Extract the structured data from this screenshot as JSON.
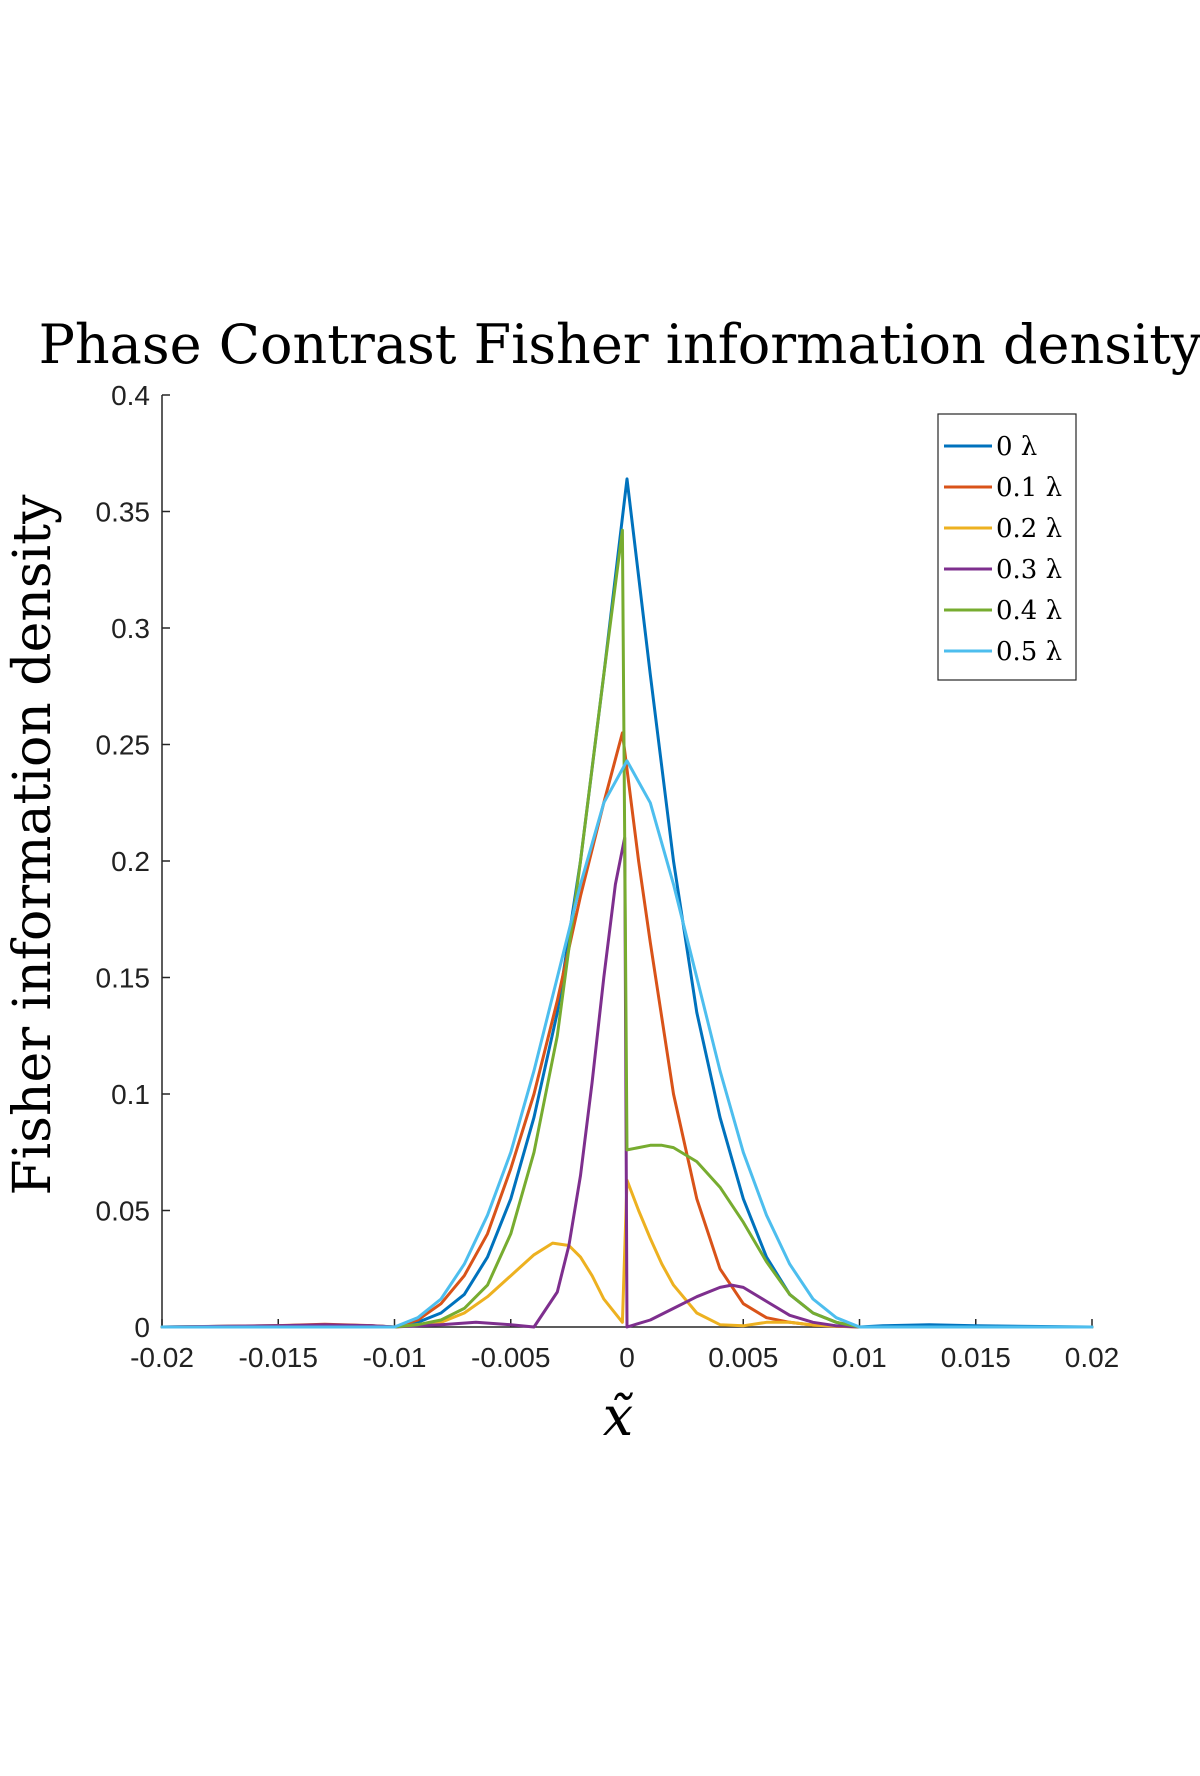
{
  "chart_data": {
    "type": "line",
    "title": "Phase Contrast Fisher information density",
    "xlabel": "x̃",
    "ylabel": "Fisher information density",
    "xlim": [
      -0.02,
      0.02
    ],
    "ylim": [
      0,
      0.4
    ],
    "xticks": [
      "-0.02",
      "-0.015",
      "-0.01",
      "-0.005",
      "0",
      "0.005",
      "0.01",
      "0.015",
      "0.02"
    ],
    "yticks": [
      "0",
      "0.05",
      "0.1",
      "0.15",
      "0.2",
      "0.25",
      "0.3",
      "0.35",
      "0.4"
    ],
    "grid": false,
    "legend_position": "top-right",
    "series": [
      {
        "name": "0 λ",
        "color": "#0072BD",
        "x": [
          -0.02,
          -0.015,
          -0.013,
          -0.011,
          -0.01,
          -0.009,
          -0.008,
          -0.007,
          -0.006,
          -0.005,
          -0.004,
          -0.003,
          -0.002,
          -0.001,
          0,
          0.001,
          0.002,
          0.003,
          0.004,
          0.005,
          0.006,
          0.007,
          0.008,
          0.009,
          0.01,
          0.011,
          0.013,
          0.015,
          0.02
        ],
        "y": [
          0,
          0.0005,
          0.001,
          0.0005,
          0,
          0.002,
          0.006,
          0.014,
          0.03,
          0.055,
          0.09,
          0.135,
          0.2,
          0.28,
          0.364,
          0.28,
          0.2,
          0.135,
          0.09,
          0.055,
          0.03,
          0.014,
          0.006,
          0.002,
          0,
          0.0005,
          0.001,
          0.0005,
          0
        ]
      },
      {
        "name": "0.1 λ",
        "color": "#D95319",
        "x": [
          -0.02,
          -0.015,
          -0.013,
          -0.011,
          -0.01,
          -0.009,
          -0.008,
          -0.007,
          -0.006,
          -0.005,
          -0.004,
          -0.003,
          -0.002,
          -0.001,
          -0.0002,
          0.0005,
          0.001,
          0.002,
          0.003,
          0.004,
          0.005,
          0.006,
          0.007,
          0.008,
          0.009,
          0.01,
          0.02
        ],
        "y": [
          0,
          0.0006,
          0.0012,
          0.0006,
          0,
          0.003,
          0.01,
          0.022,
          0.04,
          0.068,
          0.1,
          0.14,
          0.185,
          0.225,
          0.255,
          0.2,
          0.165,
          0.1,
          0.055,
          0.025,
          0.01,
          0.004,
          0.002,
          0.0008,
          0.0003,
          0,
          0
        ]
      },
      {
        "name": "0.2 λ",
        "color": "#EDB120",
        "x": [
          -0.02,
          -0.01,
          -0.008,
          -0.007,
          -0.006,
          -0.005,
          -0.004,
          -0.0032,
          -0.0025,
          -0.002,
          -0.0015,
          -0.001,
          -0.0002,
          0,
          0.0005,
          0.001,
          0.0015,
          0.002,
          0.003,
          0.004,
          0.005,
          0.006,
          0.007,
          0.008,
          0.01,
          0.02
        ],
        "y": [
          0,
          0,
          0.002,
          0.006,
          0.013,
          0.022,
          0.031,
          0.036,
          0.035,
          0.03,
          0.022,
          0.012,
          0.002,
          0.063,
          0.05,
          0.038,
          0.027,
          0.018,
          0.006,
          0.001,
          0.0005,
          0.002,
          0.002,
          0.0008,
          0,
          0
        ]
      },
      {
        "name": "0.3 λ",
        "color": "#7E2F8E",
        "x": [
          -0.02,
          -0.015,
          -0.013,
          -0.011,
          -0.01,
          -0.009,
          -0.008,
          -0.0065,
          -0.005,
          -0.004,
          -0.003,
          -0.0025,
          -0.002,
          -0.0015,
          -0.001,
          -0.0005,
          -0.0001,
          0,
          0.001,
          0.002,
          0.003,
          0.004,
          0.0045,
          0.005,
          0.006,
          0.007,
          0.008,
          0.009,
          0.01,
          0.02
        ],
        "y": [
          0,
          0.0005,
          0.001,
          0.0005,
          0,
          0.0005,
          0.001,
          0.002,
          0.001,
          0,
          0.015,
          0.035,
          0.065,
          0.105,
          0.15,
          0.19,
          0.21,
          0,
          0.003,
          0.008,
          0.013,
          0.017,
          0.018,
          0.017,
          0.011,
          0.005,
          0.002,
          0.0005,
          0,
          0
        ]
      },
      {
        "name": "0.4 λ",
        "color": "#77AC30",
        "x": [
          -0.02,
          -0.01,
          -0.009,
          -0.008,
          -0.007,
          -0.006,
          -0.005,
          -0.004,
          -0.003,
          -0.002,
          -0.001,
          -0.0002,
          0,
          0.0005,
          0.001,
          0.0015,
          0.002,
          0.003,
          0.004,
          0.005,
          0.006,
          0.007,
          0.008,
          0.009,
          0.01,
          0.02
        ],
        "y": [
          0,
          0,
          0.001,
          0.003,
          0.008,
          0.018,
          0.04,
          0.075,
          0.125,
          0.2,
          0.28,
          0.342,
          0.076,
          0.077,
          0.078,
          0.078,
          0.077,
          0.071,
          0.06,
          0.045,
          0.028,
          0.014,
          0.006,
          0.002,
          0,
          0
        ]
      },
      {
        "name": "0.5 λ",
        "color": "#4DBEEE",
        "x": [
          -0.02,
          -0.01,
          -0.009,
          -0.008,
          -0.007,
          -0.006,
          -0.005,
          -0.004,
          -0.003,
          -0.002,
          -0.001,
          0,
          0.001,
          0.002,
          0.003,
          0.004,
          0.005,
          0.006,
          0.007,
          0.008,
          0.009,
          0.01,
          0.02
        ],
        "y": [
          0,
          0,
          0.004,
          0.012,
          0.027,
          0.048,
          0.075,
          0.11,
          0.15,
          0.19,
          0.225,
          0.243,
          0.225,
          0.19,
          0.15,
          0.11,
          0.075,
          0.048,
          0.027,
          0.012,
          0.004,
          0,
          0
        ]
      }
    ]
  }
}
